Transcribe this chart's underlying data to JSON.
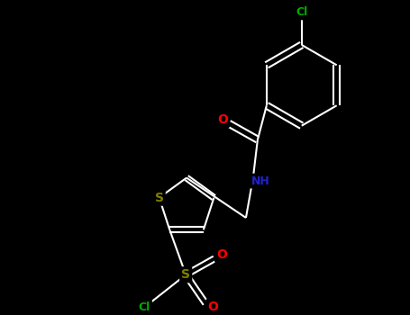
{
  "background_color": "#000000",
  "atom_colors": {
    "C": "#ffffff",
    "N": "#2222cc",
    "O": "#ff0000",
    "S_thiophene": "#808000",
    "S_sulfonyl": "#808000",
    "Cl": "#00aa00"
  },
  "bond_color": "#ffffff",
  "figsize": [
    4.55,
    3.5
  ],
  "dpi": 100,
  "xlim": [
    0,
    455
  ],
  "ylim": [
    0,
    350
  ]
}
